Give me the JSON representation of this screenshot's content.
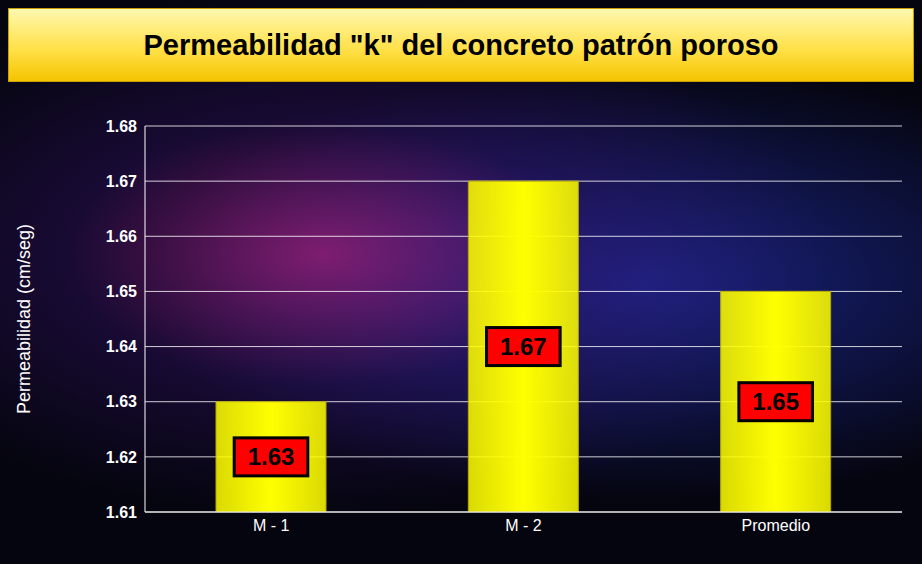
{
  "chart_data": {
    "type": "bar",
    "title": "Permeabilidad \"k\" del concreto patrón poroso",
    "y_label": "Permeabilidad (cm/seg)",
    "categories": [
      "M - 1",
      "M - 2",
      "Promedio"
    ],
    "values": [
      1.63,
      1.67,
      1.65
    ],
    "color": "#ffff00",
    "ylim": [
      1.61,
      1.68
    ],
    "yticks": [
      1.61,
      1.62,
      1.63,
      1.64,
      1.65,
      1.66,
      1.67,
      1.68
    ],
    "grid": true,
    "data_labels": true
  }
}
